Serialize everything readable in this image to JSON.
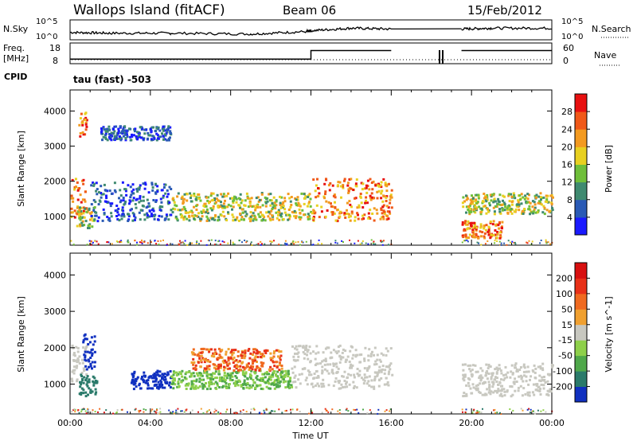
{
  "header": {
    "site": "Wallops Island (fitACF)",
    "beam": "Beam 06",
    "date": "15/Feb/2012"
  },
  "strips": {
    "nsky_label": "N.Sky",
    "nsky_ticks": [
      "10^5",
      "10^0"
    ],
    "nsky_right_ticks": [
      "10^5",
      "10^0"
    ],
    "nsearch_label": "N.Search",
    "freq_label_1": "Freq.",
    "freq_label_2": "[MHz]",
    "freq_ticks": [
      "18",
      "8"
    ],
    "nave_ticks": [
      "60",
      "0"
    ],
    "nave_label": "Nave",
    "cpid_label": "CPID",
    "cpid_value": "tau (fast) -503"
  },
  "chart_data": [
    {
      "type": "heatmap",
      "name": "power-panel",
      "xlabel": "Time UT",
      "ylabel": "Slant Range [km]",
      "xlim": [
        0,
        24
      ],
      "ylim": [
        180,
        4600
      ],
      "xticks": [
        "00:00",
        "04:00",
        "08:00",
        "12:00",
        "16:00",
        "20:00",
        "00:00"
      ],
      "yticks": [
        1000,
        2000,
        3000,
        4000
      ],
      "colorbar": {
        "label": "Power [dB]",
        "ticks": [
          4,
          8,
          12,
          16,
          20,
          24,
          28
        ],
        "colors": [
          "#1a1aff",
          "#2a5ab5",
          "#3f8a70",
          "#6fbf3a",
          "#e8d020",
          "#f39a20",
          "#f05818",
          "#e81010"
        ]
      },
      "echo_bands": [
        {
          "t": [
            0.0,
            0.8
          ],
          "range": [
            1000,
            2100
          ],
          "level": "high"
        },
        {
          "t": [
            0.3,
            1.2
          ],
          "range": [
            700,
            1300
          ],
          "level": "medium"
        },
        {
          "t": [
            0.4,
            0.8
          ],
          "range": [
            3300,
            4000
          ],
          "level": "high"
        },
        {
          "t": [
            1.5,
            5.0
          ],
          "range": [
            3200,
            3600
          ],
          "level": "low"
        },
        {
          "t": [
            1.0,
            5.0
          ],
          "range": [
            900,
            2000
          ],
          "level": "low"
        },
        {
          "t": [
            5.0,
            12.0
          ],
          "range": [
            900,
            1700
          ],
          "level": "medium"
        },
        {
          "t": [
            12.0,
            16.0
          ],
          "range": [
            900,
            2100
          ],
          "level": "high"
        },
        {
          "t": [
            19.5,
            24.0
          ],
          "range": [
            1100,
            1700
          ],
          "level": "medium"
        },
        {
          "t": [
            19.5,
            21.5
          ],
          "range": [
            400,
            900
          ],
          "level": "high"
        }
      ]
    },
    {
      "type": "heatmap",
      "name": "velocity-panel",
      "xlabel": "Time UT",
      "ylabel": "Slant Range [km]",
      "xlim": [
        0,
        24
      ],
      "ylim": [
        180,
        4600
      ],
      "xticks": [
        "00:00",
        "04:00",
        "08:00",
        "12:00",
        "16:00",
        "20:00",
        "00:00"
      ],
      "yticks": [
        1000,
        2000,
        3000,
        4000
      ],
      "colorbar": {
        "label": "Velocity [m s^-1]",
        "ticks": [
          200,
          100,
          50,
          15,
          -15,
          -50,
          -100,
          -200
        ],
        "colors": [
          "#1030c0",
          "#2a7a6a",
          "#4fa84a",
          "#8ed04a",
          "#c8c8c0",
          "#f0a030",
          "#f06a20",
          "#e83018",
          "#d81010"
        ]
      },
      "echo_bands": [
        {
          "t": [
            0.0,
            0.8
          ],
          "range": [
            1100,
            2100
          ],
          "level": "grey"
        },
        {
          "t": [
            0.6,
            1.3
          ],
          "range": [
            1400,
            2400
          ],
          "level": "blue"
        },
        {
          "t": [
            0.4,
            1.3
          ],
          "range": [
            700,
            1300
          ],
          "level": "teal"
        },
        {
          "t": [
            3.0,
            5.0
          ],
          "range": [
            900,
            1400
          ],
          "level": "blue"
        },
        {
          "t": [
            5.0,
            11.0
          ],
          "range": [
            900,
            1400
          ],
          "level": "green"
        },
        {
          "t": [
            6.0,
            10.5
          ],
          "range": [
            1400,
            2000
          ],
          "level": "orange"
        },
        {
          "t": [
            11.0,
            16.0
          ],
          "range": [
            900,
            2100
          ],
          "level": "grey"
        },
        {
          "t": [
            19.5,
            24.0
          ],
          "range": [
            700,
            1600
          ],
          "level": "grey"
        }
      ]
    }
  ],
  "time_series": {
    "nsky": {
      "x": [
        0,
        2,
        5,
        9,
        11.8,
        12,
        14,
        16,
        19.5,
        21,
        24
      ],
      "y": [
        0.35,
        0.3,
        0.3,
        0.25,
        0.4,
        0.45,
        0.6,
        0.55,
        0.55,
        0.6,
        0.6
      ]
    },
    "freq_mhz": {
      "x": [
        0,
        12.0,
        12.0,
        16.0,
        19.5,
        21.5,
        21.5,
        24
      ],
      "y": [
        10.5,
        10.5,
        15.2,
        15.2,
        15.2,
        15.2,
        15.2,
        15.2
      ]
    }
  }
}
